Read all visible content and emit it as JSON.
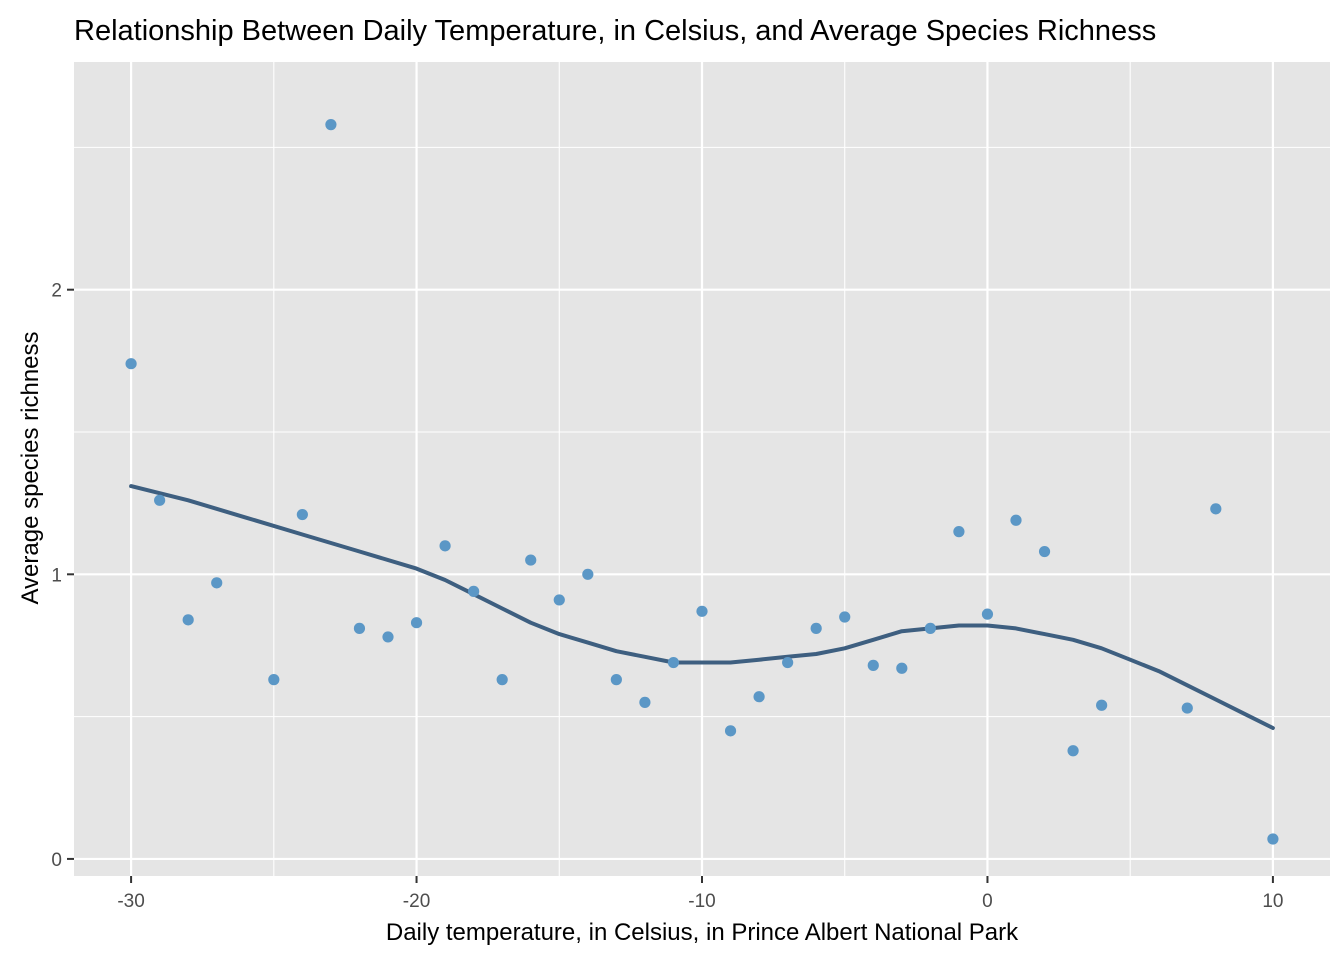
{
  "chart_data": {
    "type": "scatter",
    "title": "Relationship Between Daily Temperature, in Celsius, and Average Species Richness",
    "xlabel": "Daily temperature, in Celsius, in Prince Albert National Park",
    "ylabel": "Average species richness",
    "xlim": [
      -32,
      12
    ],
    "ylim": [
      -0.06,
      2.8
    ],
    "x_ticks": [
      -30,
      -20,
      -10,
      0,
      10
    ],
    "x_tick_labels": [
      "-30",
      "-20",
      "-10",
      "0",
      "10"
    ],
    "y_ticks": [
      0,
      1,
      2
    ],
    "y_tick_labels": [
      "0",
      "1",
      "2"
    ],
    "grid": true,
    "legend": "none",
    "point_color": "#5b97c6",
    "line_color": "#3e5f80",
    "panel_color": "#e5e5e5",
    "points": [
      {
        "x": -30,
        "y": 1.74
      },
      {
        "x": -29,
        "y": 1.26
      },
      {
        "x": -28,
        "y": 0.84
      },
      {
        "x": -27,
        "y": 0.97
      },
      {
        "x": -25,
        "y": 0.63
      },
      {
        "x": -24,
        "y": 1.21
      },
      {
        "x": -23,
        "y": 2.58
      },
      {
        "x": -22,
        "y": 0.81
      },
      {
        "x": -21,
        "y": 0.78
      },
      {
        "x": -20,
        "y": 0.83
      },
      {
        "x": -19,
        "y": 1.1
      },
      {
        "x": -18,
        "y": 0.94
      },
      {
        "x": -17,
        "y": 0.63
      },
      {
        "x": -16,
        "y": 1.05
      },
      {
        "x": -15,
        "y": 0.91
      },
      {
        "x": -14,
        "y": 1.0
      },
      {
        "x": -13,
        "y": 0.63
      },
      {
        "x": -12,
        "y": 0.55
      },
      {
        "x": -11,
        "y": 0.69
      },
      {
        "x": -10,
        "y": 0.87
      },
      {
        "x": -9,
        "y": 0.45
      },
      {
        "x": -8,
        "y": 0.57
      },
      {
        "x": -7,
        "y": 0.69
      },
      {
        "x": -6,
        "y": 0.81
      },
      {
        "x": -5,
        "y": 0.85
      },
      {
        "x": -4,
        "y": 0.68
      },
      {
        "x": -3,
        "y": 0.67
      },
      {
        "x": -2,
        "y": 0.81
      },
      {
        "x": -1,
        "y": 1.15
      },
      {
        "x": 0,
        "y": 0.86
      },
      {
        "x": 1,
        "y": 1.19
      },
      {
        "x": 2,
        "y": 1.08
      },
      {
        "x": 3,
        "y": 0.38
      },
      {
        "x": 4,
        "y": 0.54
      },
      {
        "x": 7,
        "y": 0.53
      },
      {
        "x": 8,
        "y": 1.23
      },
      {
        "x": 10,
        "y": 0.07
      }
    ],
    "smooth_line": [
      {
        "x": -30,
        "y": 1.31
      },
      {
        "x": -28,
        "y": 1.26
      },
      {
        "x": -26,
        "y": 1.2
      },
      {
        "x": -24,
        "y": 1.14
      },
      {
        "x": -22,
        "y": 1.08
      },
      {
        "x": -20,
        "y": 1.02
      },
      {
        "x": -19,
        "y": 0.98
      },
      {
        "x": -18,
        "y": 0.93
      },
      {
        "x": -17,
        "y": 0.88
      },
      {
        "x": -16,
        "y": 0.83
      },
      {
        "x": -15,
        "y": 0.79
      },
      {
        "x": -14,
        "y": 0.76
      },
      {
        "x": -13,
        "y": 0.73
      },
      {
        "x": -12,
        "y": 0.71
      },
      {
        "x": -11,
        "y": 0.69
      },
      {
        "x": -10,
        "y": 0.69
      },
      {
        "x": -9,
        "y": 0.69
      },
      {
        "x": -8,
        "y": 0.7
      },
      {
        "x": -7,
        "y": 0.71
      },
      {
        "x": -6,
        "y": 0.72
      },
      {
        "x": -5,
        "y": 0.74
      },
      {
        "x": -4,
        "y": 0.77
      },
      {
        "x": -3,
        "y": 0.8
      },
      {
        "x": -2,
        "y": 0.81
      },
      {
        "x": -1,
        "y": 0.82
      },
      {
        "x": 0,
        "y": 0.82
      },
      {
        "x": 1,
        "y": 0.81
      },
      {
        "x": 2,
        "y": 0.79
      },
      {
        "x": 3,
        "y": 0.77
      },
      {
        "x": 4,
        "y": 0.74
      },
      {
        "x": 5,
        "y": 0.7
      },
      {
        "x": 6,
        "y": 0.66
      },
      {
        "x": 7,
        "y": 0.61
      },
      {
        "x": 8,
        "y": 0.56
      },
      {
        "x": 9,
        "y": 0.51
      },
      {
        "x": 10,
        "y": 0.46
      }
    ]
  }
}
